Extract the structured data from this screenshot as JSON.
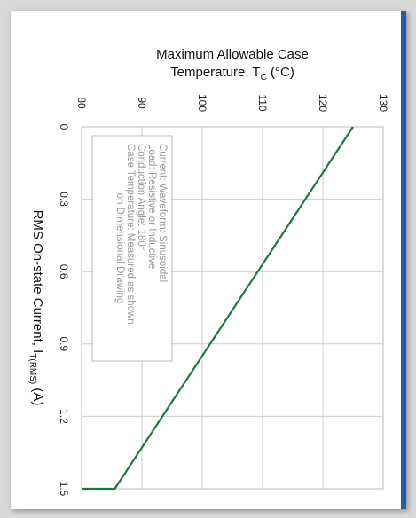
{
  "colors": {
    "line": "#1a7a3c",
    "grid": "#cccccc",
    "accent_edge": "#1e5fa8",
    "note_text": "#999999"
  },
  "chart_data": {
    "type": "line",
    "orientation": "rotated-90-clockwise",
    "title_top": {
      "line1": "Maximum Allowable Case",
      "line2_main": "Temperature, T",
      "line2_sub": "C",
      "line2_tail": " (°C)"
    },
    "side_label": {
      "main": "RMS On-state Current, I",
      "sub": "T(RMS)",
      "tail": " (A)"
    },
    "x_axis": {
      "label": "RMS On-state Current, I_T(RMS) (A)",
      "range": [
        0,
        1.5
      ],
      "ticks": [
        "0",
        "0.3",
        "0.6",
        "0.9",
        "1.2",
        "1.5"
      ]
    },
    "y_axis": {
      "label": "Maximum Allowable Case Temperature, T_C (°C)",
      "range": [
        80,
        130
      ],
      "ticks": [
        "80",
        "90",
        "100",
        "110",
        "120",
        "130"
      ]
    },
    "grid": true,
    "series": [
      {
        "x": [
          0,
          1.5,
          1.5,
          1.5
        ],
        "y": [
          125,
          85.5,
          80,
          80
        ]
      }
    ],
    "annotation": [
      "Current: Waveform: Sinusoidal",
      "Load: Resistive or Inductive",
      "Conduction Angle: 180°",
      "Case Temperature: Measured as shown",
      "on Dimensional Drawing"
    ]
  }
}
